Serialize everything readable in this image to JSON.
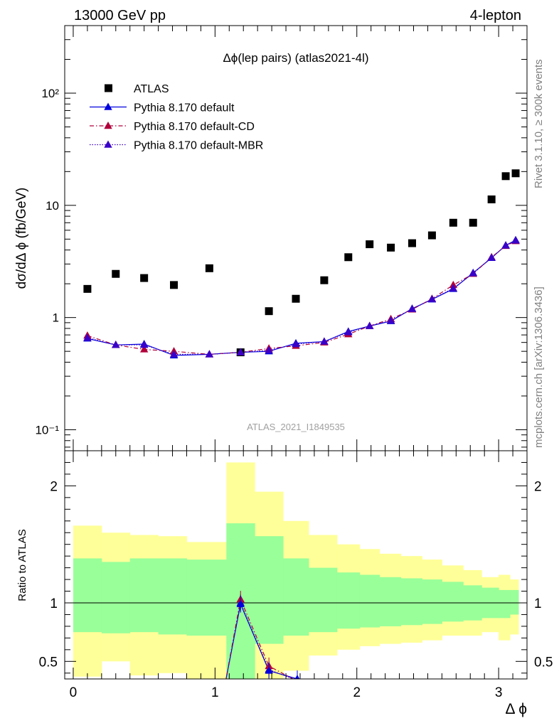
{
  "header": {
    "left": "13000 GeV pp",
    "right": "4-lepton"
  },
  "side_text": {
    "rivet": "Rivet 3.1.10, ≥ 300k events",
    "mcplots": "mcplots.cern.ch [arXiv:1306.3436]"
  },
  "chart_data": {
    "type": "scatter",
    "title": "Δϕ(lep pairs) (atlas2021-4l)",
    "watermark": "ATLAS_2021_I1849535",
    "xlabel": "Δ ϕ",
    "ylabel": "dσ/dΔ ϕ (fb/GeV)",
    "ratio_ylabel": "Ratio to ATLAS",
    "xlim": [
      -0.06,
      3.2
    ],
    "ylim": [
      0.065,
      400
    ],
    "yscale": "log",
    "ratio_ylim": [
      0.35,
      2.3
    ],
    "x_ticks": [
      "0",
      "1",
      "2",
      "3"
    ],
    "y_ticks": [
      "10⁻¹",
      "1",
      "10",
      "10²"
    ],
    "ratio_y_ticks": [
      "0.5",
      "1",
      "2"
    ],
    "legend_position": "top-left",
    "x": [
      0.1,
      0.3,
      0.5,
      0.71,
      0.96,
      1.18,
      1.38,
      1.57,
      1.77,
      1.94,
      2.09,
      2.24,
      2.39,
      2.53,
      2.68,
      2.82,
      2.95,
      3.05,
      3.12
    ],
    "series": [
      {
        "name": "ATLAS",
        "marker": "square",
        "color": "#000000",
        "values": [
          1.8,
          2.45,
          2.25,
          1.95,
          2.75,
          0.49,
          1.14,
          1.47,
          2.15,
          3.45,
          4.5,
          4.2,
          4.6,
          5.4,
          7.0,
          7.0,
          11.3,
          18.2,
          19.3
        ]
      },
      {
        "name": "Pythia 8.170 default",
        "marker": "triangle",
        "color": "#0000dd",
        "line": "solid",
        "values": [
          0.65,
          0.57,
          0.58,
          0.46,
          0.47,
          0.49,
          0.5,
          0.59,
          0.61,
          0.75,
          0.84,
          0.93,
          1.2,
          1.45,
          1.8,
          2.5,
          3.4,
          4.4,
          4.9
        ]
      },
      {
        "name": "Pythia 8.170 default-CD",
        "marker": "triangle",
        "color": "#b0003a",
        "line": "dashdot",
        "values": [
          0.69,
          0.57,
          0.52,
          0.5,
          0.47,
          0.49,
          0.53,
          0.56,
          0.6,
          0.71,
          0.84,
          0.97,
          1.18,
          1.47,
          1.95,
          2.45,
          3.45,
          4.35,
          4.8
        ]
      },
      {
        "name": "Pythia 8.170 default-MBR",
        "marker": "triangle",
        "color": "#3a00c8",
        "line": "dotted",
        "values": [
          0.66,
          0.57,
          0.57,
          0.47,
          0.47,
          0.49,
          0.51,
          0.58,
          0.61,
          0.74,
          0.84,
          0.94,
          1.19,
          1.46,
          1.82,
          2.48,
          3.42,
          4.38,
          4.85
        ]
      }
    ],
    "ratio": {
      "bins": [
        [
          0.0,
          0.2
        ],
        [
          0.2,
          0.4
        ],
        [
          0.4,
          0.6
        ],
        [
          0.6,
          0.8
        ],
        [
          0.8,
          1.08
        ],
        [
          1.08,
          1.28
        ],
        [
          1.28,
          1.48
        ],
        [
          1.48,
          1.66
        ],
        [
          1.66,
          1.86
        ],
        [
          1.86,
          2.02
        ],
        [
          2.02,
          2.16
        ],
        [
          2.16,
          2.31
        ],
        [
          2.31,
          2.46
        ],
        [
          2.46,
          2.6
        ],
        [
          2.6,
          2.75
        ],
        [
          2.75,
          2.88
        ],
        [
          2.88,
          3.0
        ],
        [
          3.0,
          3.08
        ],
        [
          3.08,
          3.14
        ]
      ],
      "band_inner": [
        [
          0.75,
          1.38
        ],
        [
          0.74,
          1.35
        ],
        [
          0.75,
          1.38
        ],
        [
          0.73,
          1.38
        ],
        [
          0.72,
          1.37
        ],
        [
          0.35,
          1.68
        ],
        [
          0.65,
          1.57
        ],
        [
          0.72,
          1.38
        ],
        [
          0.75,
          1.3
        ],
        [
          0.78,
          1.26
        ],
        [
          0.79,
          1.24
        ],
        [
          0.8,
          1.22
        ],
        [
          0.81,
          1.21
        ],
        [
          0.82,
          1.2
        ],
        [
          0.84,
          1.18
        ],
        [
          0.85,
          1.15
        ],
        [
          0.87,
          1.13
        ],
        [
          0.87,
          1.11
        ],
        [
          0.9,
          1.11
        ]
      ],
      "band_outer": [
        [
          0.37,
          1.66
        ],
        [
          0.5,
          1.6
        ],
        [
          0.38,
          1.58
        ],
        [
          0.4,
          1.57
        ],
        [
          0.35,
          1.52
        ],
        [
          0.35,
          2.2
        ],
        [
          0.35,
          1.95
        ],
        [
          0.42,
          1.7
        ],
        [
          0.55,
          1.58
        ],
        [
          0.6,
          1.5
        ],
        [
          0.63,
          1.46
        ],
        [
          0.65,
          1.42
        ],
        [
          0.66,
          1.4
        ],
        [
          0.68,
          1.37
        ],
        [
          0.72,
          1.32
        ],
        [
          0.72,
          1.28
        ],
        [
          0.75,
          1.22
        ],
        [
          0.68,
          1.24
        ],
        [
          0.73,
          1.2
        ]
      ],
      "series": [
        {
          "name": "Pythia 8.170 default",
          "color": "#0000dd",
          "line": "solid",
          "x": [
            1.07,
            1.18,
            1.38,
            1.58
          ],
          "values": [
            0.3,
            0.99,
            0.42,
            0.35
          ],
          "markers": [
            false,
            true,
            true,
            true
          ]
        },
        {
          "name": "Pythia 8.170 default-CD",
          "color": "#b0003a",
          "line": "dashdot",
          "x": [
            1.07,
            1.18,
            1.38,
            1.55
          ],
          "values": [
            0.3,
            1.03,
            0.46,
            0.35
          ],
          "markers": [
            false,
            true,
            true,
            false
          ]
        },
        {
          "name": "Pythia 8.170 default-MBR",
          "color": "#3a00c8",
          "line": "dotted",
          "x": [
            1.07,
            1.18,
            1.38,
            1.55
          ],
          "values": [
            0.3,
            1.0,
            0.43,
            0.35
          ],
          "markers": [
            false,
            true,
            true,
            false
          ]
        }
      ]
    },
    "colors": {
      "band_inner": "#99ff99",
      "band_outer": "#ffff99"
    }
  }
}
